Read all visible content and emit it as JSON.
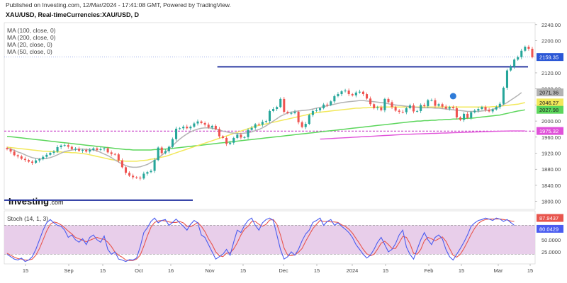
{
  "header": {
    "published": "Published on Investing.com, 12/Mar/2024 - 17:41:08 GMT, Powered by TradingView.",
    "symbol": "XAU/USD, Real-timeCurrencies:XAU/USD, D"
  },
  "indicators": [
    "MA (100, close, 0)",
    "MA (200, close, 0)",
    "MA (20, close, 0)",
    "MA (50, close, 0)"
  ],
  "stoch_label": "Stoch (14, 1, 3)",
  "colors": {
    "up": "#26a69a",
    "down": "#ef5350",
    "ma20": "#b3b3b3",
    "ma50": "#f2e85a",
    "ma100": "#5cd65c",
    "ma200": "#e052d9",
    "hline_blue": "#1f2f9e",
    "hline_magenta": "#c83cc8",
    "stoch_k": "#4a5cf0",
    "stoch_d": "#e8554d",
    "stoch_band": "#e4c6e6"
  },
  "chart_data": [
    {
      "type": "candlestick",
      "title": "XAU/USD, D",
      "ylim": [
        1780,
        2245
      ],
      "y_ticks": [
        "2240.00",
        "2200.00",
        "2120.00",
        "2080.00",
        "2040.00",
        "2000.00",
        "1960.00",
        "1920.00",
        "1880.00",
        "1840.00",
        "1800.00"
      ],
      "x_labels": [
        "15",
        "Sep",
        "15",
        "Oct",
        "16",
        "Nov",
        "15",
        "Dec",
        "15",
        "2024",
        "15",
        "Feb",
        "15",
        "Mar",
        "15"
      ],
      "price_tags": [
        {
          "label": "2159.35",
          "style": "last"
        },
        {
          "label": "2071.36",
          "style": "ma20"
        },
        {
          "label": "2046.27",
          "style": "ma50"
        },
        {
          "label": "2027.98",
          "style": "ma100"
        },
        {
          "label": "1975.32",
          "style": "ma200"
        }
      ],
      "close": [
        1930,
        1924,
        1915,
        1912,
        1906,
        1903,
        1899,
        1896,
        1902,
        1905,
        1911,
        1916,
        1921,
        1924,
        1935,
        1939,
        1940,
        1936,
        1930,
        1931,
        1926,
        1928,
        1924,
        1928,
        1932,
        1928,
        1930,
        1932,
        1922,
        1918,
        1917,
        1902,
        1885,
        1871,
        1864,
        1860,
        1859,
        1857,
        1869,
        1873,
        1876,
        1903,
        1934,
        1920,
        1925,
        1936,
        1955,
        1981,
        1982,
        1986,
        1982,
        1986,
        1994,
        1999,
        1995,
        1991,
        1984,
        1988,
        1980,
        1962,
        1958,
        1943,
        1946,
        1958,
        1966,
        1959,
        1960,
        1978,
        1983,
        1992,
        1991,
        1998,
        2000,
        2025,
        2030,
        2035,
        2055,
        2023,
        2020,
        2020,
        2023,
        1997,
        1985,
        1993,
        2015,
        2025,
        2027,
        2032,
        2041,
        2040,
        2049,
        2062,
        2067,
        2074,
        2076,
        2067,
        2064,
        2071,
        2073,
        2067,
        2056,
        2042,
        2032,
        2034,
        2027,
        2055,
        2047,
        2035,
        2026,
        2023,
        2022,
        2032,
        2039,
        2024,
        2025,
        2040,
        2037,
        2052,
        2052,
        2038,
        2042,
        2036,
        2031,
        2035,
        2032,
        2009,
        2003,
        2018,
        2008,
        2022,
        2026,
        2030,
        2035,
        2028,
        2024,
        2029,
        2035,
        2043,
        2083,
        2126,
        2135,
        2153,
        2159,
        2175,
        2185,
        2180,
        2159
      ],
      "ma20": [
        1933,
        1930,
        1927,
        1923,
        1920,
        1916,
        1912,
        1909,
        1907,
        1906,
        1906,
        1907,
        1909,
        1912,
        1916,
        1920,
        1924,
        1926,
        1928,
        1929,
        1930,
        1930,
        1929,
        1929,
        1928,
        1926,
        1922,
        1918,
        1914,
        1909,
        1903,
        1898,
        1893,
        1889,
        1886,
        1885,
        1885,
        1886,
        1889,
        1892,
        1897,
        1902,
        1908,
        1915,
        1922,
        1930,
        1939,
        1947,
        1955,
        1962,
        1968,
        1973,
        1977,
        1980,
        1982,
        1983,
        1983,
        1982,
        1980,
        1978,
        1975,
        1973,
        1971,
        1970,
        1969,
        1969,
        1970,
        1971,
        1973,
        1976,
        1979,
        1983,
        1988,
        1994,
        2000,
        2006,
        2012,
        2016,
        2020,
        2022,
        2024,
        2025,
        2026,
        2027,
        2028,
        2030,
        2032,
        2034,
        2036,
        2038,
        2040,
        2042,
        2044,
        2046,
        2047,
        2048,
        2049,
        2050,
        2051,
        2051,
        2050,
        2049,
        2048,
        2047,
        2046,
        2045,
        2043,
        2041,
        2040,
        2039,
        2038,
        2037,
        2036,
        2035,
        2034,
        2033,
        2033,
        2033,
        2033,
        2032,
        2032,
        2031,
        2030,
        2029,
        2028,
        2027,
        2026,
        2025,
        2024,
        2024,
        2024,
        2024,
        2025,
        2026,
        2027,
        2029,
        2032,
        2036,
        2041,
        2046,
        2052,
        2058,
        2064,
        2071
      ],
      "ma50": [
        1935,
        1934,
        1933,
        1932,
        1931,
        1930,
        1929,
        1928,
        1927,
        1926,
        1925,
        1925,
        1924,
        1924,
        1923,
        1923,
        1922,
        1922,
        1921,
        1921,
        1920,
        1919,
        1918,
        1916,
        1914,
        1912,
        1910,
        1908,
        1906,
        1904,
        1903,
        1902,
        1901,
        1900,
        1900,
        1900,
        1900,
        1901,
        1902,
        1903,
        1905,
        1906,
        1908,
        1910,
        1912,
        1915,
        1918,
        1921,
        1924,
        1927,
        1930,
        1933,
        1936,
        1939,
        1942,
        1945,
        1948,
        1951,
        1954,
        1957,
        1960,
        1963,
        1966,
        1969,
        1972,
        1975,
        1978,
        1981,
        1984,
        1987,
        1989,
        1991,
        1993,
        1995,
        1997,
        1999,
        2001,
        2003,
        2005,
        2007,
        2009,
        2011,
        2013,
        2015,
        2017,
        2019,
        2021,
        2022,
        2023,
        2024,
        2025,
        2026,
        2027,
        2028,
        2029,
        2030,
        2031,
        2032,
        2032,
        2033,
        2033,
        2034,
        2034,
        2035,
        2035,
        2035,
        2035,
        2035,
        2035,
        2035,
        2035,
        2035,
        2035,
        2035,
        2035,
        2035,
        2035,
        2035,
        2035,
        2035,
        2035,
        2035,
        2035,
        2035,
        2035,
        2035,
        2035,
        2035,
        2035,
        2035,
        2035,
        2035,
        2035,
        2035,
        2035,
        2036,
        2036,
        2037,
        2038,
        2039,
        2040,
        2041,
        2042,
        2044,
        2046
      ],
      "ma100": [
        1962,
        1961,
        1960,
        1959,
        1958,
        1957,
        1956,
        1955,
        1954,
        1953,
        1952,
        1951,
        1950,
        1949,
        1948,
        1947,
        1946,
        1945,
        1944,
        1943,
        1942,
        1941,
        1940,
        1939,
        1938,
        1937,
        1936,
        1935,
        1934,
        1933,
        1932,
        1931,
        1930,
        1929,
        1929,
        1928,
        1928,
        1928,
        1928,
        1928,
        1928,
        1929,
        1929,
        1930,
        1930,
        1931,
        1932,
        1933,
        1934,
        1935,
        1936,
        1937,
        1938,
        1939,
        1940,
        1941,
        1942,
        1943,
        1944,
        1945,
        1946,
        1947,
        1948,
        1949,
        1950,
        1951,
        1952,
        1953,
        1954,
        1955,
        1956,
        1957,
        1958,
        1959,
        1960,
        1961,
        1962,
        1963,
        1964,
        1965,
        1966,
        1967,
        1968,
        1969,
        1970,
        1971,
        1972,
        1973,
        1974,
        1975,
        1976,
        1977,
        1978,
        1979,
        1980,
        1981,
        1982,
        1983,
        1984,
        1985,
        1986,
        1987,
        1988,
        1989,
        1990,
        1991,
        1992,
        1993,
        1994,
        1995,
        1996,
        1997,
        1998,
        1999,
        2000,
        2000,
        2001,
        2001,
        2002,
        2002,
        2003,
        2003,
        2004,
        2004,
        2005,
        2005,
        2006,
        2006,
        2007,
        2007,
        2008,
        2009,
        2010,
        2011,
        2012,
        2013,
        2014,
        2015,
        2017,
        2019,
        2021,
        2023,
        2025,
        2026,
        2028
      ],
      "ma200": [
        null,
        null,
        null,
        null,
        null,
        null,
        null,
        null,
        null,
        null,
        null,
        null,
        null,
        null,
        null,
        null,
        null,
        null,
        null,
        null,
        null,
        null,
        null,
        null,
        null,
        null,
        null,
        null,
        null,
        null,
        null,
        null,
        null,
        null,
        null,
        null,
        null,
        null,
        null,
        null,
        null,
        null,
        null,
        null,
        null,
        null,
        null,
        null,
        null,
        null,
        null,
        null,
        null,
        null,
        null,
        null,
        null,
        null,
        null,
        null,
        null,
        null,
        null,
        null,
        null,
        null,
        null,
        null,
        null,
        null,
        null,
        null,
        null,
        null,
        null,
        null,
        null,
        null,
        null,
        null,
        null,
        null,
        null,
        null,
        null,
        null,
        null,
        1955,
        1955.5,
        1956,
        1956.5,
        1957,
        1957.5,
        1958,
        1958.5,
        1959,
        1959.5,
        1960,
        1960.5,
        1961,
        1961.5,
        1962,
        1962.5,
        1963,
        1963.5,
        1964,
        1964.5,
        1965,
        1965.5,
        1966,
        1966.5,
        1967,
        1967.3,
        1967.6,
        1967.9,
        1968.2,
        1968.5,
        1968.8,
        1969.1,
        1969.4,
        1969.7,
        1970,
        1970.3,
        1970.6,
        1970.9,
        1971.2,
        1971.5,
        1971.8,
        1972.1,
        1972.4,
        1972.7,
        1973,
        1973.3,
        1973.6,
        1973.9,
        1974.2,
        1974.5,
        1974.8,
        1975,
        1975.2,
        1975.3,
        1975.32,
        1975.32,
        1975.32,
        1975.32
      ],
      "hlines": [
        {
          "y": 2135,
          "from": 62,
          "to": 147,
          "style": "blue-resistance"
        },
        {
          "y": 1803,
          "from": 0,
          "to": 41,
          "style": "blue-support"
        },
        {
          "y": 1975,
          "from": 0,
          "to": 147,
          "style": "magenta-dashed"
        }
      ],
      "dotted_last": 2159.35
    },
    {
      "type": "line",
      "title": "Stoch (14, 1, 3)",
      "ylim": [
        0,
        110
      ],
      "y_ticks": [
        "100.0000",
        "75.0000",
        "50.0000",
        "25.0000"
      ],
      "band": [
        20,
        80
      ],
      "value_tags": [
        "87.9437",
        "80.0429"
      ],
      "k": [
        20,
        15,
        10,
        8,
        12,
        5,
        8,
        15,
        30,
        50,
        70,
        85,
        92,
        85,
        80,
        78,
        70,
        55,
        60,
        50,
        45,
        52,
        40,
        55,
        60,
        50,
        45,
        58,
        30,
        20,
        25,
        10,
        8,
        5,
        9,
        8,
        12,
        35,
        65,
        75,
        88,
        95,
        85,
        90,
        92,
        80,
        86,
        93,
        85,
        78,
        70,
        82,
        90,
        85,
        60,
        55,
        40,
        25,
        10,
        15,
        20,
        30,
        18,
        45,
        70,
        65,
        80,
        90,
        95,
        80,
        70,
        85,
        92,
        95,
        90,
        60,
        30,
        10,
        15,
        25,
        18,
        30,
        48,
        62,
        70,
        86,
        90,
        95,
        80,
        88,
        92,
        80,
        85,
        78,
        72,
        65,
        55,
        40,
        30,
        20,
        12,
        18,
        30,
        45,
        55,
        40,
        25,
        30,
        42,
        60,
        70,
        35,
        20,
        10,
        30,
        50,
        65,
        50,
        40,
        55,
        60,
        52,
        30,
        15,
        8,
        20,
        32,
        45,
        60,
        78,
        85,
        90,
        92,
        95,
        93,
        90,
        95,
        93,
        88,
        92,
        86,
        80
      ],
      "d": [
        22,
        18,
        14,
        11,
        10,
        8,
        8,
        10,
        18,
        32,
        50,
        68,
        82,
        87,
        85,
        81,
        75,
        68,
        62,
        55,
        52,
        49,
        46,
        49,
        52,
        55,
        52,
        51,
        45,
        36,
        24,
        18,
        14,
        8,
        7,
        7,
        10,
        18,
        37,
        58,
        76,
        86,
        89,
        90,
        89,
        87,
        86,
        86,
        88,
        85,
        78,
        77,
        81,
        86,
        78,
        67,
        52,
        40,
        25,
        17,
        15,
        22,
        23,
        31,
        44,
        60,
        72,
        78,
        88,
        88,
        82,
        78,
        82,
        91,
        92,
        82,
        60,
        33,
        18,
        17,
        19,
        24,
        32,
        47,
        60,
        73,
        82,
        90,
        88,
        88,
        87,
        87,
        86,
        81,
        78,
        72,
        64,
        53,
        42,
        30,
        21,
        17,
        20,
        31,
        43,
        47,
        40,
        32,
        32,
        44,
        57,
        55,
        42,
        22,
        20,
        30,
        48,
        55,
        52,
        48,
        52,
        56,
        47,
        32,
        18,
        14,
        20,
        32,
        46,
        61,
        74,
        84,
        89,
        92,
        93,
        93,
        93,
        93,
        92,
        91,
        89,
        88
      ]
    }
  ]
}
